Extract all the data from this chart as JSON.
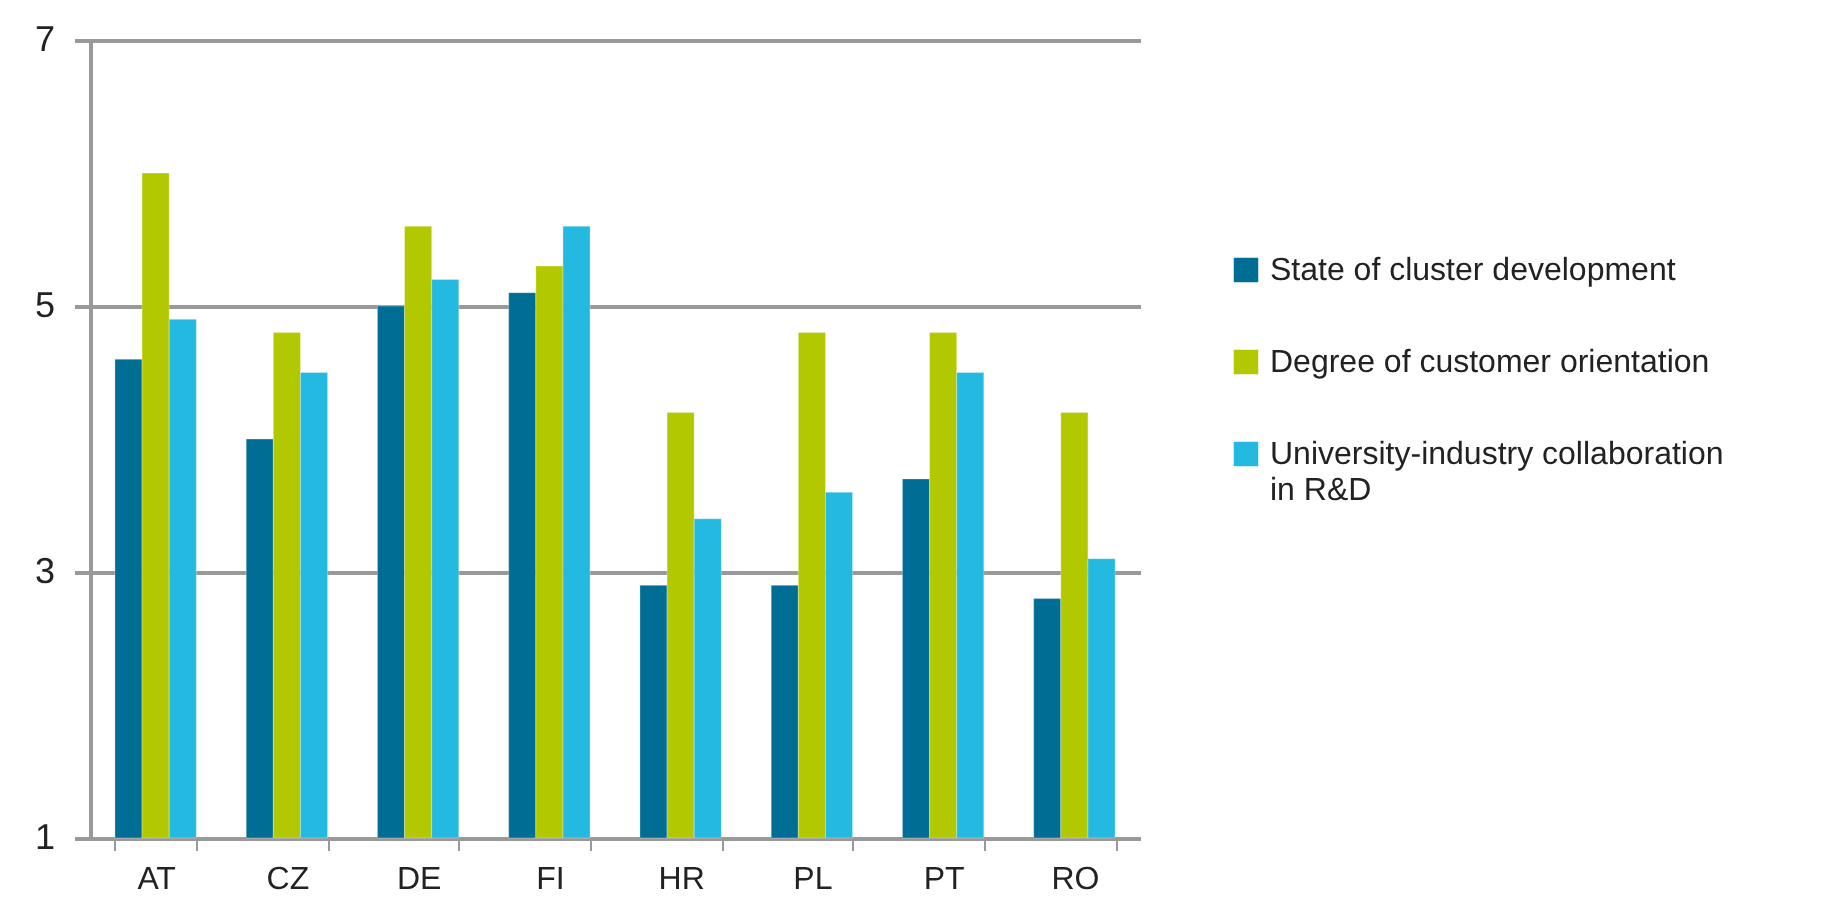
{
  "chart_data": {
    "type": "bar",
    "categories": [
      "AT",
      "CZ",
      "DE",
      "FI",
      "HR",
      "PL",
      "PT",
      "RO"
    ],
    "series": [
      {
        "name": "State of cluster development",
        "color": "#006e94",
        "values": [
          4.6,
          4.0,
          5.0,
          5.1,
          2.9,
          2.9,
          3.7,
          2.8
        ]
      },
      {
        "name": "Degree of customer orientation",
        "color": "#b2c800",
        "values": [
          6.0,
          4.8,
          5.6,
          5.3,
          4.2,
          4.8,
          4.8,
          4.2
        ]
      },
      {
        "name": "University-industry collaboration in R&D",
        "color": "#24b9e0",
        "values": [
          4.9,
          4.5,
          5.2,
          5.6,
          3.4,
          3.6,
          4.5,
          3.1
        ]
      }
    ],
    "ylim": [
      1,
      7
    ],
    "yticks": [
      1,
      3,
      5,
      7
    ],
    "grid": "y",
    "legend": "right"
  }
}
